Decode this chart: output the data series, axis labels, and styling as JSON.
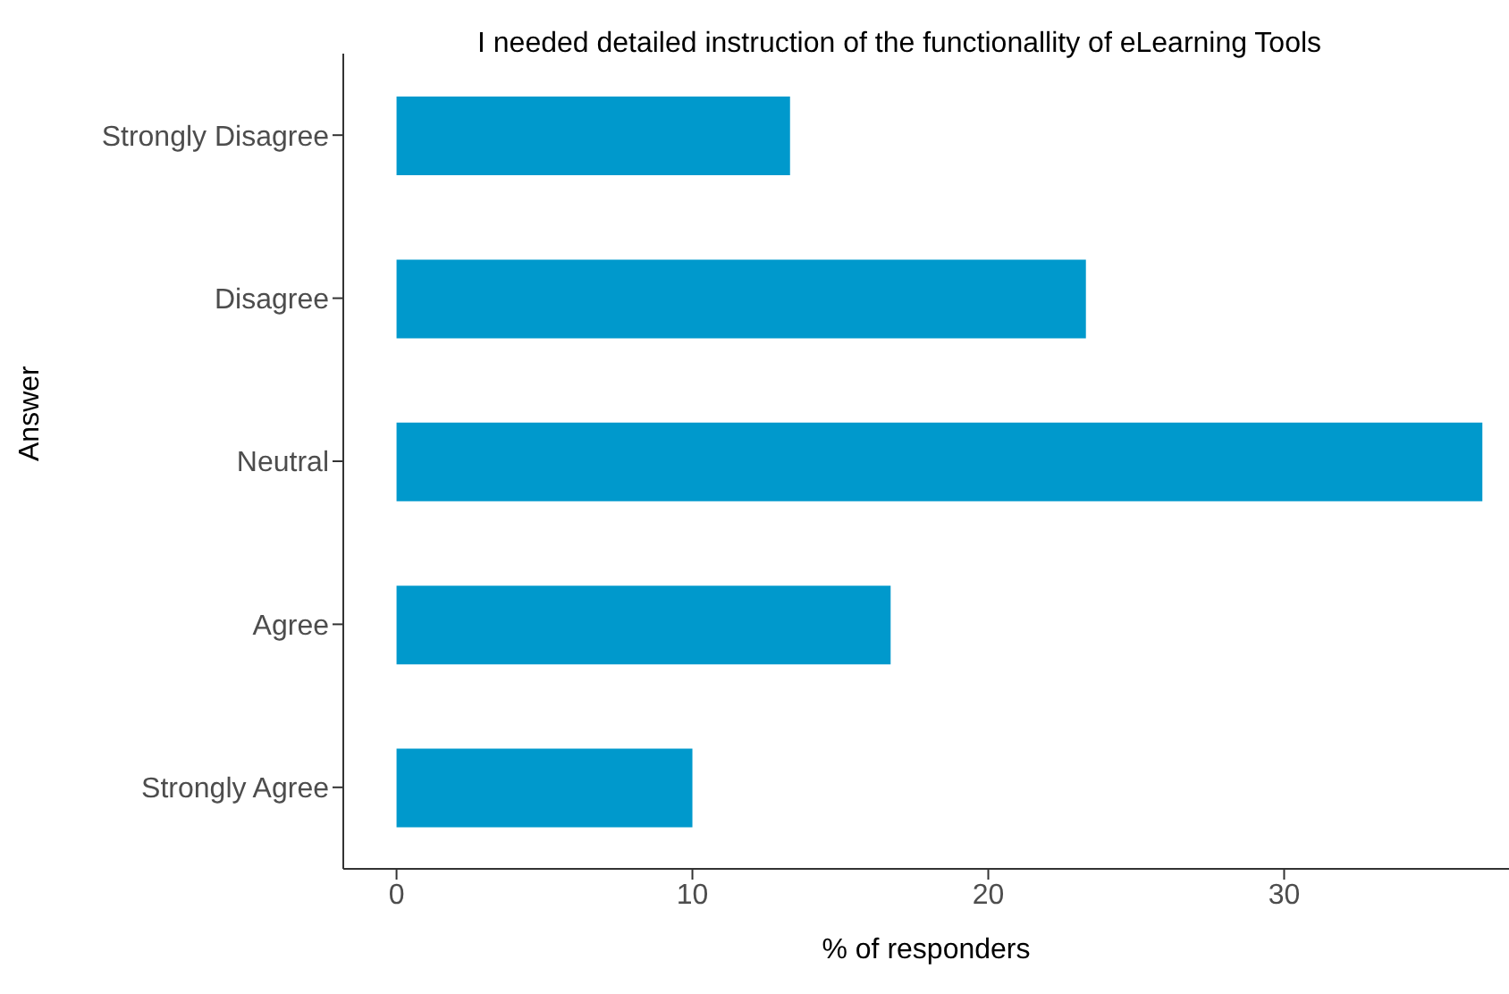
{
  "chart_data": {
    "type": "bar",
    "orientation": "horizontal",
    "title": "I needed detailed instruction of the functionallity of eLearning Tools",
    "xlabel": "% of responders",
    "ylabel": "Answer",
    "categories": [
      "Strongly Disagree",
      "Disagree",
      "Neutral",
      "Agree",
      "Strongly Agree"
    ],
    "values": [
      13.3,
      23.3,
      36.7,
      16.7,
      10
    ],
    "color": "#0099cc",
    "xlim": [
      -1.8,
      37.6
    ],
    "xticks": [
      0,
      10,
      20,
      30
    ],
    "grid": false,
    "legend": false
  }
}
